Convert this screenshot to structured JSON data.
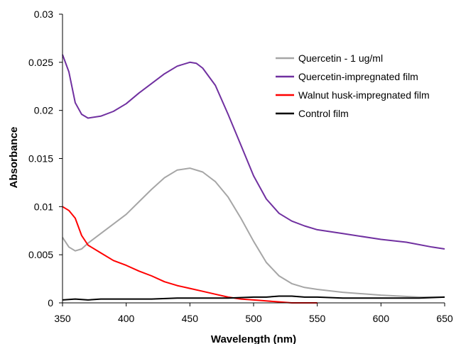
{
  "chart_data": {
    "type": "line",
    "title": "",
    "xlabel": "Wavelength (nm)",
    "ylabel": "Absorbance",
    "xlim": [
      350,
      650
    ],
    "ylim": [
      0,
      0.03
    ],
    "x_ticks": [
      "350",
      "400",
      "450",
      "500",
      "550",
      "600",
      "650"
    ],
    "y_ticks": [
      "0",
      "0.005",
      "0.01",
      "0.015",
      "0.02",
      "0.025",
      "0.03"
    ],
    "grid": false,
    "legend_position": "top-right",
    "series": [
      {
        "name": "Quercetin - 1 ug/ml",
        "color": "#a6a6a6",
        "points": [
          [
            350,
            0.0068
          ],
          [
            355,
            0.0058
          ],
          [
            360,
            0.0054
          ],
          [
            365,
            0.0056
          ],
          [
            370,
            0.0062
          ],
          [
            380,
            0.0072
          ],
          [
            390,
            0.0082
          ],
          [
            400,
            0.0092
          ],
          [
            410,
            0.0105
          ],
          [
            420,
            0.0118
          ],
          [
            430,
            0.013
          ],
          [
            440,
            0.0138
          ],
          [
            450,
            0.014
          ],
          [
            460,
            0.0136
          ],
          [
            470,
            0.0126
          ],
          [
            480,
            0.011
          ],
          [
            490,
            0.0088
          ],
          [
            500,
            0.0064
          ],
          [
            510,
            0.0042
          ],
          [
            520,
            0.0028
          ],
          [
            530,
            0.002
          ],
          [
            540,
            0.0016
          ],
          [
            550,
            0.0014
          ],
          [
            570,
            0.0011
          ],
          [
            600,
            0.0008
          ],
          [
            630,
            0.0006
          ],
          [
            650,
            0.0006
          ]
        ]
      },
      {
        "name": "Quercetin-impregnated film",
        "color": "#7030a0",
        "points": [
          [
            350,
            0.0258
          ],
          [
            355,
            0.024
          ],
          [
            360,
            0.0208
          ],
          [
            365,
            0.0196
          ],
          [
            370,
            0.0192
          ],
          [
            380,
            0.0194
          ],
          [
            390,
            0.0199
          ],
          [
            400,
            0.0207
          ],
          [
            410,
            0.0218
          ],
          [
            420,
            0.0228
          ],
          [
            430,
            0.0238
          ],
          [
            440,
            0.0246
          ],
          [
            450,
            0.025
          ],
          [
            455,
            0.0249
          ],
          [
            460,
            0.0244
          ],
          [
            470,
            0.0226
          ],
          [
            480,
            0.0196
          ],
          [
            490,
            0.0164
          ],
          [
            500,
            0.0132
          ],
          [
            510,
            0.0108
          ],
          [
            520,
            0.0093
          ],
          [
            530,
            0.0085
          ],
          [
            540,
            0.008
          ],
          [
            550,
            0.0076
          ],
          [
            570,
            0.0072
          ],
          [
            600,
            0.0066
          ],
          [
            620,
            0.0063
          ],
          [
            640,
            0.0058
          ],
          [
            650,
            0.0056
          ]
        ]
      },
      {
        "name": "Walnut husk-impregnated film",
        "color": "#ff0000",
        "points": [
          [
            350,
            0.01
          ],
          [
            355,
            0.0096
          ],
          [
            360,
            0.0088
          ],
          [
            365,
            0.007
          ],
          [
            370,
            0.006
          ],
          [
            380,
            0.0052
          ],
          [
            390,
            0.0044
          ],
          [
            400,
            0.0039
          ],
          [
            410,
            0.0033
          ],
          [
            420,
            0.0028
          ],
          [
            430,
            0.0022
          ],
          [
            440,
            0.0018
          ],
          [
            450,
            0.0015
          ],
          [
            460,
            0.0012
          ],
          [
            470,
            0.0009
          ],
          [
            480,
            0.0006
          ],
          [
            490,
            0.0004
          ],
          [
            500,
            0.0003
          ],
          [
            510,
            0.0002
          ],
          [
            520,
            0.0001
          ],
          [
            530,
            0.0
          ],
          [
            540,
            0.0
          ],
          [
            550,
            0.0
          ]
        ]
      },
      {
        "name": "Control film",
        "color": "#000000",
        "points": [
          [
            350,
            0.0003
          ],
          [
            360,
            0.0004
          ],
          [
            370,
            0.0003
          ],
          [
            380,
            0.0004
          ],
          [
            400,
            0.0004
          ],
          [
            420,
            0.0004
          ],
          [
            440,
            0.0005
          ],
          [
            460,
            0.0005
          ],
          [
            480,
            0.0005
          ],
          [
            500,
            0.0006
          ],
          [
            510,
            0.0006
          ],
          [
            520,
            0.0007
          ],
          [
            530,
            0.0007
          ],
          [
            540,
            0.0006
          ],
          [
            550,
            0.0006
          ],
          [
            570,
            0.0005
          ],
          [
            600,
            0.0005
          ],
          [
            630,
            0.0005
          ],
          [
            650,
            0.0006
          ]
        ]
      }
    ]
  }
}
